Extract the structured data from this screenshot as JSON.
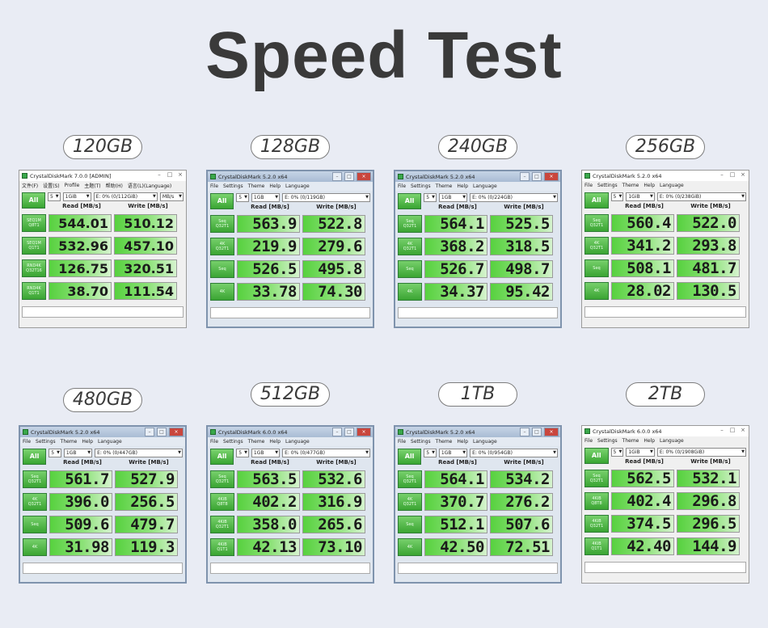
{
  "page_title": "Speed Test",
  "window_controls": {
    "minimize": "–",
    "maximize": "□",
    "close": "×"
  },
  "benchmarks": [
    {
      "capacity": "120GB",
      "title": "CrystalDiskMark 7.0.0  [ADMIN]",
      "menu": [
        "文件(F)",
        "设置(S)",
        "Profile",
        "主题(T)",
        "帮助(H)",
        "语言(L)(Language)"
      ],
      "all_label": "All",
      "count": "5",
      "size": "1GiB",
      "drive": "E: 0% (0/112GiB)",
      "unit": "MB/s",
      "read_header": "Read [MB/s]",
      "write_header": "Write [MB/s]",
      "rows": [
        {
          "label": [
            "SEQ1M",
            "Q8T1"
          ],
          "read": "544.01",
          "write": "510.12"
        },
        {
          "label": [
            "SEQ1M",
            "Q1T1"
          ],
          "read": "532.96",
          "write": "457.10"
        },
        {
          "label": [
            "RND4K",
            "Q32T16"
          ],
          "read": "126.75",
          "write": "320.51"
        },
        {
          "label": [
            "RND4K",
            "Q1T1"
          ],
          "read": "38.70",
          "write": "111.54"
        }
      ]
    },
    {
      "capacity": "128GB",
      "title": "CrystalDiskMark 5.2.0 x64",
      "menu": [
        "File",
        "Settings",
        "Theme",
        "Help",
        "Language"
      ],
      "all_label": "All",
      "count": "5",
      "size": "1GB",
      "drive": "E: 0% (0/119GB)",
      "unit": "",
      "read_header": "Read [MB/s]",
      "write_header": "Write [MB/s]",
      "rows": [
        {
          "label": [
            "Seq",
            "Q32T1"
          ],
          "read": "563.9",
          "write": "522.8"
        },
        {
          "label": [
            "4K",
            "Q32T1"
          ],
          "read": "219.9",
          "write": "279.6"
        },
        {
          "label": [
            "Seq"
          ],
          "read": "526.5",
          "write": "495.8"
        },
        {
          "label": [
            "4K"
          ],
          "read": "33.78",
          "write": "74.30"
        }
      ]
    },
    {
      "capacity": "240GB",
      "title": "CrystalDiskMark 5.2.0 x64",
      "menu": [
        "File",
        "Settings",
        "Theme",
        "Help",
        "Language"
      ],
      "all_label": "All",
      "count": "5",
      "size": "1GB",
      "drive": "E: 0% (0/224GB)",
      "unit": "",
      "read_header": "Read [MB/s]",
      "write_header": "Write [MB/s]",
      "rows": [
        {
          "label": [
            "Seq",
            "Q32T1"
          ],
          "read": "564.1",
          "write": "525.5"
        },
        {
          "label": [
            "4K",
            "Q32T1"
          ],
          "read": "368.2",
          "write": "318.5"
        },
        {
          "label": [
            "Seq"
          ],
          "read": "526.7",
          "write": "498.7"
        },
        {
          "label": [
            "4K"
          ],
          "read": "34.37",
          "write": "95.42"
        }
      ]
    },
    {
      "capacity": "256GB",
      "title": "CrystalDiskMark 5.2.0 x64",
      "menu": [
        "File",
        "Settings",
        "Theme",
        "Help",
        "Language"
      ],
      "all_label": "All",
      "count": "5",
      "size": "1GiB",
      "drive": "E: 0% (0/238GiB)",
      "unit": "",
      "read_header": "Read [MB/s]",
      "write_header": "Write [MB/s]",
      "rows": [
        {
          "label": [
            "Seq",
            "Q32T1"
          ],
          "read": "560.4",
          "write": "522.0"
        },
        {
          "label": [
            "4K",
            "Q32T1"
          ],
          "read": "341.2",
          "write": "293.8"
        },
        {
          "label": [
            "Seq"
          ],
          "read": "508.1",
          "write": "481.7"
        },
        {
          "label": [
            "4K"
          ],
          "read": "28.02",
          "write": "130.5"
        }
      ]
    },
    {
      "capacity": "480GB",
      "title": "CrystalDiskMark 5.2.0 x64",
      "menu": [
        "File",
        "Settings",
        "Theme",
        "Help",
        "Language"
      ],
      "all_label": "All",
      "count": "5",
      "size": "1GB",
      "drive": "E: 0% (0/447GB)",
      "unit": "",
      "read_header": "Read [MB/s]",
      "write_header": "Write [MB/s]",
      "rows": [
        {
          "label": [
            "Seq",
            "Q32T1"
          ],
          "read": "561.7",
          "write": "527.9"
        },
        {
          "label": [
            "4K",
            "Q32T1"
          ],
          "read": "396.0",
          "write": "256.5"
        },
        {
          "label": [
            "Seq"
          ],
          "read": "509.6",
          "write": "479.7"
        },
        {
          "label": [
            "4K"
          ],
          "read": "31.98",
          "write": "119.3"
        }
      ]
    },
    {
      "capacity": "512GB",
      "title": "CrystalDiskMark 6.0.0 x64",
      "menu": [
        "File",
        "Settings",
        "Theme",
        "Help",
        "Language"
      ],
      "all_label": "All",
      "count": "5",
      "size": "1GB",
      "drive": "E: 0% (0/477GB)",
      "unit": "",
      "read_header": "Read [MB/s]",
      "write_header": "Write [MB/s]",
      "rows": [
        {
          "label": [
            "Seq",
            "Q32T1"
          ],
          "read": "563.5",
          "write": "532.6"
        },
        {
          "label": [
            "4KiB",
            "Q8T8"
          ],
          "read": "402.2",
          "write": "316.9"
        },
        {
          "label": [
            "4KiB",
            "Q32T1"
          ],
          "read": "358.0",
          "write": "265.6"
        },
        {
          "label": [
            "4KiB",
            "Q1T1"
          ],
          "read": "42.13",
          "write": "73.10"
        }
      ]
    },
    {
      "capacity": "1TB",
      "title": "CrystalDiskMark 5.2.0 x64",
      "menu": [
        "File",
        "Settings",
        "Theme",
        "Help",
        "Language"
      ],
      "all_label": "All",
      "count": "5",
      "size": "1GB",
      "drive": "E: 0% (0/954GB)",
      "unit": "",
      "read_header": "Read [MB/s]",
      "write_header": "Write [MB/s]",
      "rows": [
        {
          "label": [
            "Seq",
            "Q32T1"
          ],
          "read": "564.1",
          "write": "534.2"
        },
        {
          "label": [
            "4K",
            "Q32T1"
          ],
          "read": "370.7",
          "write": "276.2"
        },
        {
          "label": [
            "Seq"
          ],
          "read": "512.1",
          "write": "507.6"
        },
        {
          "label": [
            "4K"
          ],
          "read": "42.50",
          "write": "72.51"
        }
      ]
    },
    {
      "capacity": "2TB",
      "title": "CrystalDiskMark 6.0.0 x64",
      "menu": [
        "File",
        "Settings",
        "Theme",
        "Help",
        "Language"
      ],
      "all_label": "All",
      "count": "5",
      "size": "1GiB",
      "drive": "E: 0% (0/1908GiB)",
      "unit": "",
      "read_header": "Read [MB/s]",
      "write_header": "Write [MB/s]",
      "rows": [
        {
          "label": [
            "Seq",
            "Q32T1"
          ],
          "read": "562.5",
          "write": "532.1"
        },
        {
          "label": [
            "4KiB",
            "Q8T8"
          ],
          "read": "402.4",
          "write": "296.8"
        },
        {
          "label": [
            "4KiB",
            "Q32T1"
          ],
          "read": "374.5",
          "write": "296.5"
        },
        {
          "label": [
            "4KiB",
            "Q1T1"
          ],
          "read": "42.40",
          "write": "144.9"
        }
      ]
    }
  ]
}
